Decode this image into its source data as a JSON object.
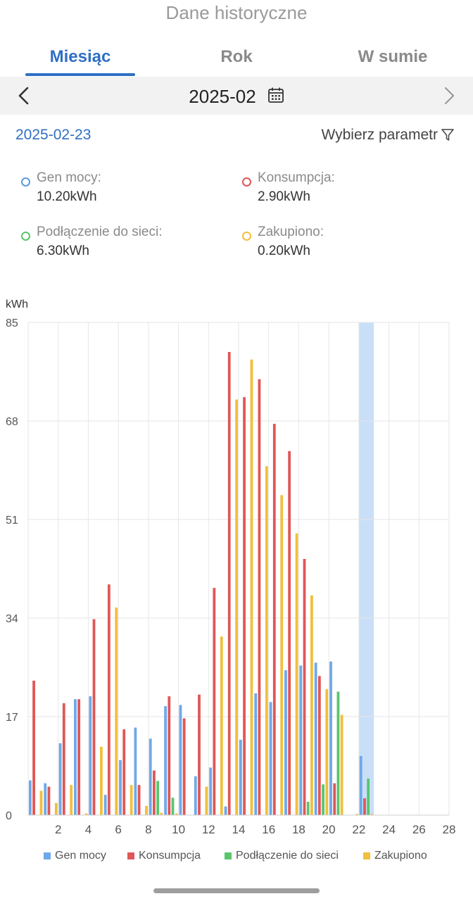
{
  "header": {
    "title": "Dane historyczne"
  },
  "tabs": [
    {
      "label": "Miesiąc",
      "active": true
    },
    {
      "label": "Rok",
      "active": false
    },
    {
      "label": "W sumie",
      "active": false
    }
  ],
  "period": {
    "label": "2025-02"
  },
  "selected_date": "2025-02-23",
  "param_selector": {
    "label": "Wybierz parametr"
  },
  "metrics": [
    {
      "label": "Gen mocy:",
      "value": "10.20kWh",
      "color": "#5b9bde"
    },
    {
      "label": "Konsumpcja:",
      "value": "2.90kWh",
      "color": "#e05757"
    },
    {
      "label": "Podłączenie do sieci:",
      "value": "6.30kWh",
      "color": "#59c66e"
    },
    {
      "label": "Zakupiono:",
      "value": "0.20kWh",
      "color": "#f0bf3c"
    }
  ],
  "chart_data": {
    "type": "bar",
    "ylabel": "kWh",
    "ylim": [
      0,
      85
    ],
    "yticks": [
      "0",
      "17",
      "34",
      "51",
      "68",
      "85"
    ],
    "xlim": [
      0,
      28
    ],
    "xticks": [
      "2",
      "4",
      "6",
      "8",
      "10",
      "12",
      "14",
      "16",
      "18",
      "20",
      "22",
      "24",
      "26",
      "28"
    ],
    "highlight_day": 23,
    "categories": [
      "1",
      "2",
      "3",
      "4",
      "5",
      "6",
      "7",
      "8",
      "9",
      "10",
      "11",
      "12",
      "13",
      "14",
      "15",
      "16",
      "17",
      "18",
      "19",
      "20",
      "21",
      "22",
      "23"
    ],
    "series": [
      {
        "name": "Gen mocy",
        "color": "#6fa8e8",
        "values": [
          6.0,
          5.5,
          12.4,
          20.0,
          20.5,
          3.5,
          9.5,
          15.1,
          13.2,
          18.8,
          19.0,
          6.7,
          8.2,
          1.5,
          13.0,
          21.0,
          19.5,
          25.0,
          25.8,
          26.3,
          26.5,
          0,
          10.2
        ]
      },
      {
        "name": "Konsumpcja",
        "color": "#e05757",
        "values": [
          23.2,
          4.9,
          19.3,
          20.0,
          33.8,
          39.8,
          14.8,
          5.2,
          7.7,
          20.5,
          16.7,
          20.8,
          39.2,
          79.9,
          72.1,
          75.2,
          67.5,
          62.8,
          44.2,
          24.0,
          5.5,
          0,
          2.9
        ]
      },
      {
        "name": "Podłączenie do sieci",
        "color": "#59c66e",
        "values": [
          0,
          0,
          0,
          0,
          0,
          0,
          0,
          0,
          5.9,
          3.0,
          0,
          0,
          0,
          0,
          0,
          0,
          0,
          0,
          2.3,
          5.3,
          21.3,
          0,
          6.3
        ]
      },
      {
        "name": "Zakupiono",
        "color": "#f0bf3c",
        "values": [
          4.2,
          2.1,
          5.2,
          0.3,
          11.8,
          35.8,
          5.2,
          1.6,
          0.4,
          0.3,
          0,
          4.9,
          30.8,
          71.7,
          78.6,
          60.2,
          55.2,
          48.6,
          37.9,
          21.7,
          17.3,
          0.2,
          0.2
        ]
      }
    ]
  },
  "legend": [
    {
      "label": "Gen mocy",
      "color": "#6fa8e8"
    },
    {
      "label": "Konsumpcja",
      "color": "#e05757"
    },
    {
      "label": "Podłączenie do sieci",
      "color": "#59c66e"
    },
    {
      "label": "Zakupiono",
      "color": "#f0bf3c"
    }
  ]
}
